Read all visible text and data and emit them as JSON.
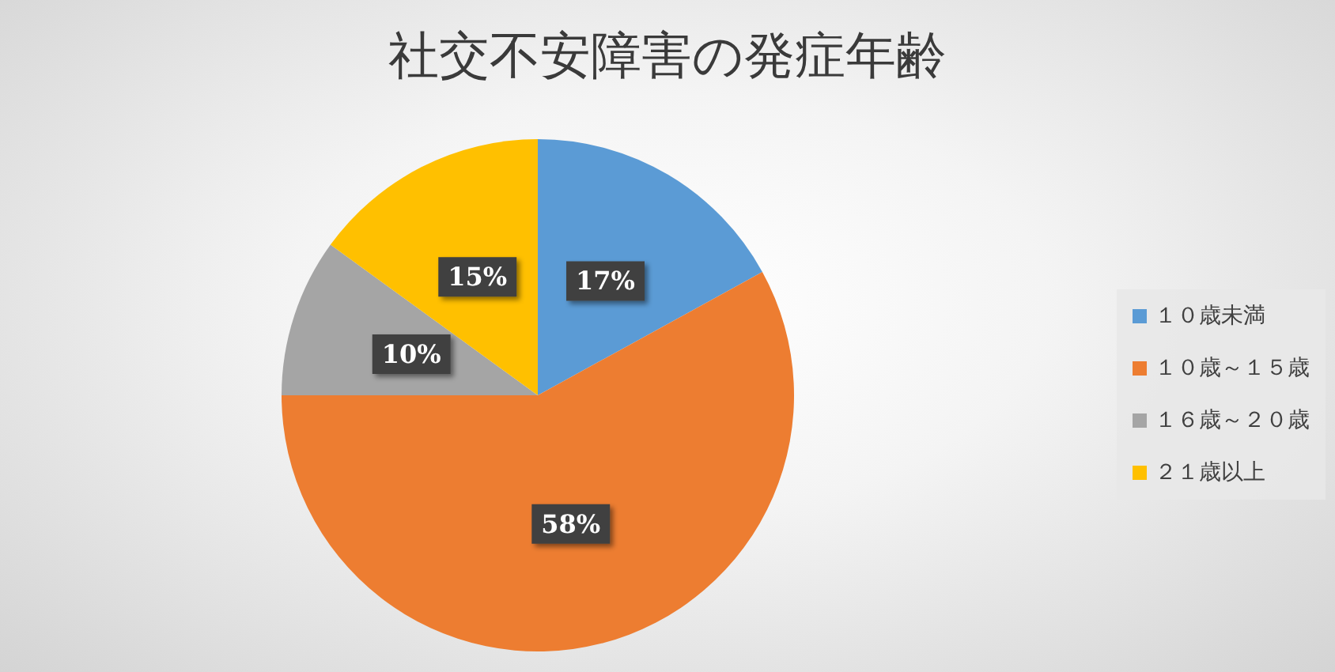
{
  "chart_data": {
    "type": "pie",
    "title": "社交不安障害の発症年齢",
    "categories": [
      "１０歳未満",
      "１０歳～１５歳",
      "１６歳～２０歳",
      "２１歳以上"
    ],
    "values": [
      17,
      58,
      10,
      15
    ],
    "colors": [
      "#5b9bd5",
      "#ed7d31",
      "#a5a5a5",
      "#ffc000"
    ],
    "value_labels": [
      "17%",
      "58%",
      "10%",
      "15%"
    ],
    "legend": "right"
  }
}
